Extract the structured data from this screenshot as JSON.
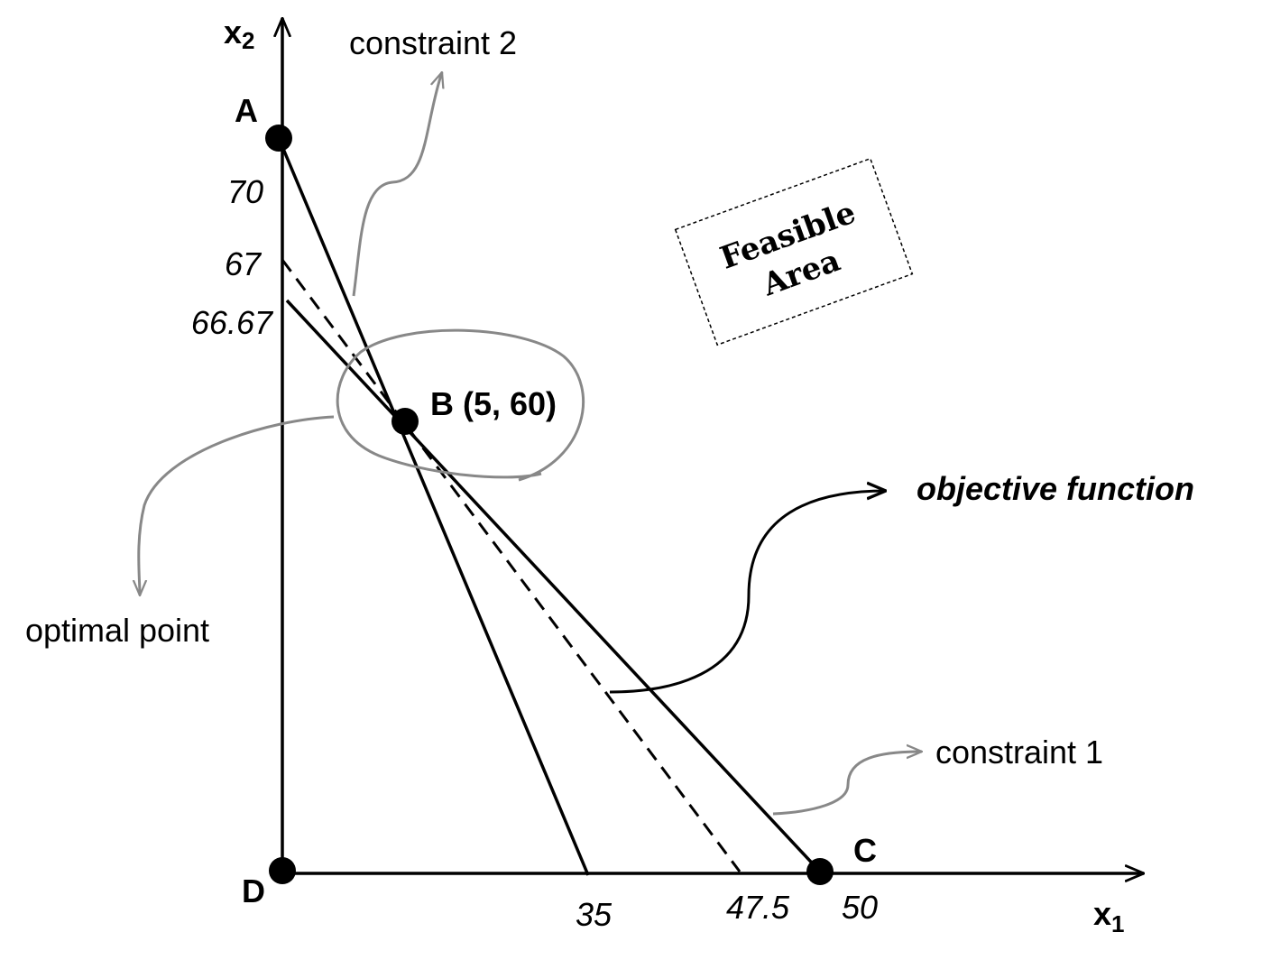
{
  "axes": {
    "x_label": "x",
    "x_sub": "1",
    "y_label": "x",
    "y_sub": "2"
  },
  "points": {
    "a": "A",
    "b": "B (5, 60)",
    "c": "C",
    "d": "D"
  },
  "y_ticks": [
    70,
    67,
    66.67
  ],
  "x_ticks": [
    35,
    47.5,
    50
  ],
  "annotations": {
    "constraint_2": "constraint 2",
    "constraint_1": "constraint 1",
    "objective": "objective function",
    "optimal": "optimal point"
  },
  "feasible_area": [
    "Feasible",
    "Area"
  ]
}
